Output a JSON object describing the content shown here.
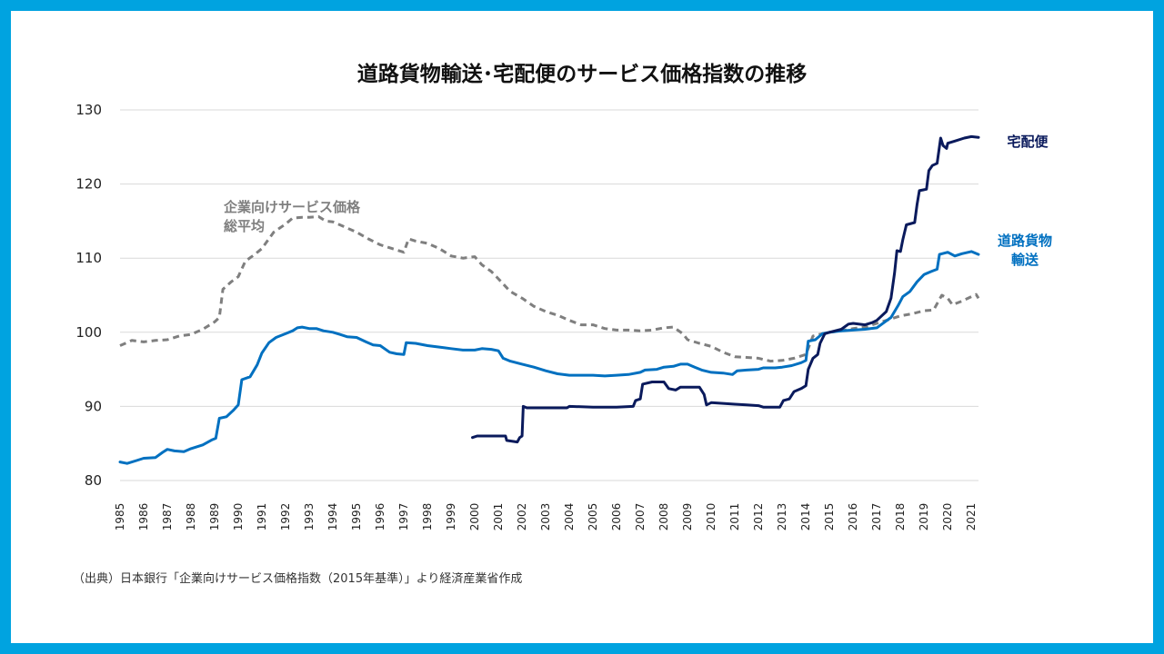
{
  "chart_data": {
    "type": "line",
    "title": "道路貨物輸送･宅配便のサービス価格指数の推移",
    "xlabel": "",
    "ylabel": "",
    "ylim": [
      80,
      130
    ],
    "yticks": [
      80,
      90,
      100,
      110,
      120,
      130
    ],
    "xlim": [
      1985,
      2021.3
    ],
    "xticks": [
      "1985",
      "1986",
      "1987",
      "1988",
      "1989",
      "1990",
      "1991",
      "1992",
      "1993",
      "1994",
      "1995",
      "1996",
      "1997",
      "1998",
      "1999",
      "2000",
      "2001",
      "2002",
      "2003",
      "2004",
      "2005",
      "2006",
      "2007",
      "2008",
      "2009",
      "2010",
      "2011",
      "2012",
      "2013",
      "2014",
      "2015",
      "2016",
      "2017",
      "2018",
      "2019",
      "2020",
      "2021"
    ],
    "grid": true,
    "series": [
      {
        "name": "企業向けサービス価格総平均",
        "label_lines": [
          "企業向けサービス価格",
          "総平均"
        ],
        "color": "#7f7f7f",
        "style": "dashed",
        "points": [
          [
            1985,
            98.2
          ],
          [
            1985.5,
            98.9
          ],
          [
            1986,
            98.7
          ],
          [
            1986.5,
            98.9
          ],
          [
            1987,
            99.0
          ],
          [
            1987.5,
            99.5
          ],
          [
            1988,
            99.7
          ],
          [
            1988.5,
            100.4
          ],
          [
            1989,
            101.4
          ],
          [
            1989.2,
            102.0
          ],
          [
            1989.35,
            105.8
          ],
          [
            1989.7,
            106.8
          ],
          [
            1990,
            107.5
          ],
          [
            1990.3,
            109.6
          ],
          [
            1990.7,
            110.5
          ],
          [
            1991,
            111.3
          ],
          [
            1991.5,
            113.5
          ],
          [
            1992,
            114.6
          ],
          [
            1992.3,
            115.4
          ],
          [
            1992.7,
            115.5
          ],
          [
            1993,
            115.5
          ],
          [
            1993.4,
            115.6
          ],
          [
            1993.7,
            115.0
          ],
          [
            1994,
            114.9
          ],
          [
            1994.5,
            114.2
          ],
          [
            1995,
            113.5
          ],
          [
            1995.5,
            112.6
          ],
          [
            1996,
            111.8
          ],
          [
            1996.5,
            111.3
          ],
          [
            1997,
            110.8
          ],
          [
            1997.2,
            112.6
          ],
          [
            1997.5,
            112.3
          ],
          [
            1998,
            112.0
          ],
          [
            1998.5,
            111.3
          ],
          [
            1999,
            110.3
          ],
          [
            1999.5,
            110.0
          ],
          [
            2000,
            110.2
          ],
          [
            2000.3,
            109.1
          ],
          [
            2000.7,
            108.2
          ],
          [
            2001,
            107.2
          ],
          [
            2001.5,
            105.5
          ],
          [
            2002,
            104.6
          ],
          [
            2002.5,
            103.5
          ],
          [
            2003,
            102.8
          ],
          [
            2003.5,
            102.3
          ],
          [
            2004,
            101.6
          ],
          [
            2004.5,
            101.0
          ],
          [
            2005,
            101.0
          ],
          [
            2005.5,
            100.5
          ],
          [
            2006,
            100.3
          ],
          [
            2006.5,
            100.3
          ],
          [
            2007,
            100.2
          ],
          [
            2007.5,
            100.3
          ],
          [
            2008,
            100.6
          ],
          [
            2008.4,
            100.7
          ],
          [
            2008.8,
            99.8
          ],
          [
            2009,
            99.0
          ],
          [
            2009.5,
            98.5
          ],
          [
            2010,
            98.1
          ],
          [
            2010.5,
            97.3
          ],
          [
            2011,
            96.7
          ],
          [
            2011.5,
            96.6
          ],
          [
            2012,
            96.5
          ],
          [
            2012.5,
            96.1
          ],
          [
            2013,
            96.2
          ],
          [
            2013.5,
            96.5
          ],
          [
            2014,
            97.0
          ],
          [
            2014.3,
            99.5
          ],
          [
            2014.7,
            99.8
          ],
          [
            2015,
            100.0
          ],
          [
            2015.5,
            100.2
          ],
          [
            2016,
            100.5
          ],
          [
            2016.5,
            100.7
          ],
          [
            2017,
            101.2
          ],
          [
            2017.5,
            101.7
          ],
          [
            2018,
            102.2
          ],
          [
            2018.5,
            102.5
          ],
          [
            2019,
            102.9
          ],
          [
            2019.4,
            103.0
          ],
          [
            2019.75,
            105.0
          ],
          [
            2020,
            104.6
          ],
          [
            2020.2,
            103.7
          ],
          [
            2020.6,
            104.2
          ],
          [
            2021,
            104.8
          ],
          [
            2021.2,
            105.1
          ],
          [
            2021.3,
            104.6
          ]
        ]
      },
      {
        "name": "道路貨物輸送",
        "label_lines": [
          "道路貨物",
          "輸送"
        ],
        "color": "#0070c0",
        "style": "solid",
        "points": [
          [
            1985,
            82.5
          ],
          [
            1985.3,
            82.3
          ],
          [
            1985.7,
            82.7
          ],
          [
            1986,
            83.0
          ],
          [
            1986.5,
            83.1
          ],
          [
            1986.8,
            83.8
          ],
          [
            1987,
            84.2
          ],
          [
            1987.3,
            84.0
          ],
          [
            1987.7,
            83.9
          ],
          [
            1988,
            84.3
          ],
          [
            1988.5,
            84.8
          ],
          [
            1988.9,
            85.5
          ],
          [
            1989.05,
            85.7
          ],
          [
            1989.2,
            88.4
          ],
          [
            1989.5,
            88.6
          ],
          [
            1989.8,
            89.5
          ],
          [
            1990,
            90.2
          ],
          [
            1990.15,
            93.6
          ],
          [
            1990.5,
            94.0
          ],
          [
            1990.8,
            95.6
          ],
          [
            1991,
            97.2
          ],
          [
            1991.3,
            98.6
          ],
          [
            1991.6,
            99.3
          ],
          [
            1992,
            99.8
          ],
          [
            1992.3,
            100.2
          ],
          [
            1992.5,
            100.6
          ],
          [
            1992.7,
            100.7
          ],
          [
            1993,
            100.5
          ],
          [
            1993.3,
            100.5
          ],
          [
            1993.6,
            100.2
          ],
          [
            1994,
            100.0
          ],
          [
            1994.3,
            99.7
          ],
          [
            1994.6,
            99.4
          ],
          [
            1995,
            99.3
          ],
          [
            1995.4,
            98.7
          ],
          [
            1995.7,
            98.3
          ],
          [
            1996,
            98.2
          ],
          [
            1996.4,
            97.3
          ],
          [
            1996.7,
            97.1
          ],
          [
            1997,
            97.0
          ],
          [
            1997.1,
            98.6
          ],
          [
            1997.5,
            98.5
          ],
          [
            1998,
            98.2
          ],
          [
            1998.5,
            98.0
          ],
          [
            1999,
            97.8
          ],
          [
            1999.5,
            97.6
          ],
          [
            2000,
            97.6
          ],
          [
            2000.3,
            97.8
          ],
          [
            2000.7,
            97.7
          ],
          [
            2001,
            97.5
          ],
          [
            2001.2,
            96.5
          ],
          [
            2001.5,
            96.1
          ],
          [
            2002,
            95.7
          ],
          [
            2002.5,
            95.3
          ],
          [
            2003,
            94.8
          ],
          [
            2003.5,
            94.4
          ],
          [
            2004,
            94.2
          ],
          [
            2004.5,
            94.2
          ],
          [
            2005,
            94.2
          ],
          [
            2005.5,
            94.1
          ],
          [
            2006,
            94.2
          ],
          [
            2006.5,
            94.3
          ],
          [
            2007,
            94.6
          ],
          [
            2007.2,
            94.9
          ],
          [
            2007.7,
            95.0
          ],
          [
            2008,
            95.3
          ],
          [
            2008.4,
            95.4
          ],
          [
            2008.7,
            95.7
          ],
          [
            2009,
            95.7
          ],
          [
            2009.3,
            95.3
          ],
          [
            2009.6,
            94.9
          ],
          [
            2010,
            94.6
          ],
          [
            2010.5,
            94.5
          ],
          [
            2010.9,
            94.3
          ],
          [
            2011.1,
            94.8
          ],
          [
            2011.5,
            94.9
          ],
          [
            2012,
            95.0
          ],
          [
            2012.2,
            95.2
          ],
          [
            2012.7,
            95.2
          ],
          [
            2013,
            95.3
          ],
          [
            2013.4,
            95.5
          ],
          [
            2013.8,
            95.9
          ],
          [
            2014.0,
            96.2
          ],
          [
            2014.1,
            98.8
          ],
          [
            2014.4,
            99.0
          ],
          [
            2014.7,
            99.8
          ],
          [
            2015,
            100.0
          ],
          [
            2015.5,
            100.2
          ],
          [
            2016,
            100.3
          ],
          [
            2016.5,
            100.4
          ],
          [
            2017,
            100.6
          ],
          [
            2017.3,
            101.3
          ],
          [
            2017.6,
            102.0
          ],
          [
            2017.9,
            103.6
          ],
          [
            2018.1,
            104.8
          ],
          [
            2018.4,
            105.5
          ],
          [
            2018.7,
            106.8
          ],
          [
            2019,
            107.8
          ],
          [
            2019.3,
            108.2
          ],
          [
            2019.55,
            108.5
          ],
          [
            2019.65,
            110.5
          ],
          [
            2020,
            110.8
          ],
          [
            2020.3,
            110.3
          ],
          [
            2020.6,
            110.6
          ],
          [
            2021,
            110.9
          ],
          [
            2021.3,
            110.5
          ]
        ]
      },
      {
        "name": "宅配便",
        "label_lines": [
          "宅配便"
        ],
        "color": "#0a1a5c",
        "style": "solid",
        "points": [
          [
            1999.9,
            85.8
          ],
          [
            2000.1,
            86.0
          ],
          [
            2001.3,
            86.0
          ],
          [
            2001.35,
            85.4
          ],
          [
            2001.8,
            85.2
          ],
          [
            2001.9,
            85.8
          ],
          [
            2002.0,
            86.0
          ],
          [
            2002.05,
            90.0
          ],
          [
            2002.2,
            89.8
          ],
          [
            2003,
            89.8
          ],
          [
            2003.9,
            89.8
          ],
          [
            2004.0,
            90.0
          ],
          [
            2005,
            89.9
          ],
          [
            2006,
            89.9
          ],
          [
            2006.7,
            90.0
          ],
          [
            2006.8,
            90.8
          ],
          [
            2007.0,
            91.0
          ],
          [
            2007.1,
            93.0
          ],
          [
            2007.5,
            93.3
          ],
          [
            2008,
            93.3
          ],
          [
            2008.2,
            92.4
          ],
          [
            2008.5,
            92.2
          ],
          [
            2008.7,
            92.6
          ],
          [
            2009,
            92.6
          ],
          [
            2009.5,
            92.6
          ],
          [
            2009.7,
            91.6
          ],
          [
            2009.8,
            90.2
          ],
          [
            2010,
            90.5
          ],
          [
            2010.5,
            90.4
          ],
          [
            2011,
            90.3
          ],
          [
            2011.5,
            90.2
          ],
          [
            2012,
            90.1
          ],
          [
            2012.2,
            89.9
          ],
          [
            2012.9,
            89.9
          ],
          [
            2013.05,
            90.8
          ],
          [
            2013.3,
            91.0
          ],
          [
            2013.5,
            92.0
          ],
          [
            2013.8,
            92.4
          ],
          [
            2014.0,
            92.8
          ],
          [
            2014.1,
            95.0
          ],
          [
            2014.3,
            96.5
          ],
          [
            2014.5,
            97.0
          ],
          [
            2014.6,
            98.5
          ],
          [
            2014.8,
            99.8
          ],
          [
            2015,
            100.0
          ],
          [
            2015.5,
            100.4
          ],
          [
            2015.8,
            101.1
          ],
          [
            2016,
            101.2
          ],
          [
            2016.5,
            101.0
          ],
          [
            2016.8,
            101.3
          ],
          [
            2017,
            101.6
          ],
          [
            2017.4,
            102.8
          ],
          [
            2017.6,
            104.6
          ],
          [
            2017.75,
            108.0
          ],
          [
            2017.85,
            111.0
          ],
          [
            2018,
            110.9
          ],
          [
            2018.1,
            112.5
          ],
          [
            2018.25,
            114.5
          ],
          [
            2018.6,
            114.8
          ],
          [
            2018.7,
            117.2
          ],
          [
            2018.8,
            119.1
          ],
          [
            2019.1,
            119.3
          ],
          [
            2019.2,
            121.8
          ],
          [
            2019.35,
            122.5
          ],
          [
            2019.55,
            122.8
          ],
          [
            2019.7,
            126.2
          ],
          [
            2019.8,
            125.2
          ],
          [
            2019.95,
            124.8
          ],
          [
            2020,
            125.5
          ],
          [
            2020.3,
            125.8
          ],
          [
            2020.7,
            126.2
          ],
          [
            2021,
            126.4
          ],
          [
            2021.3,
            126.3
          ]
        ]
      }
    ],
    "source_note": "（出典）日本銀行「企業向けサービス価格指数（2015年基準）」より経済産業省作成"
  }
}
